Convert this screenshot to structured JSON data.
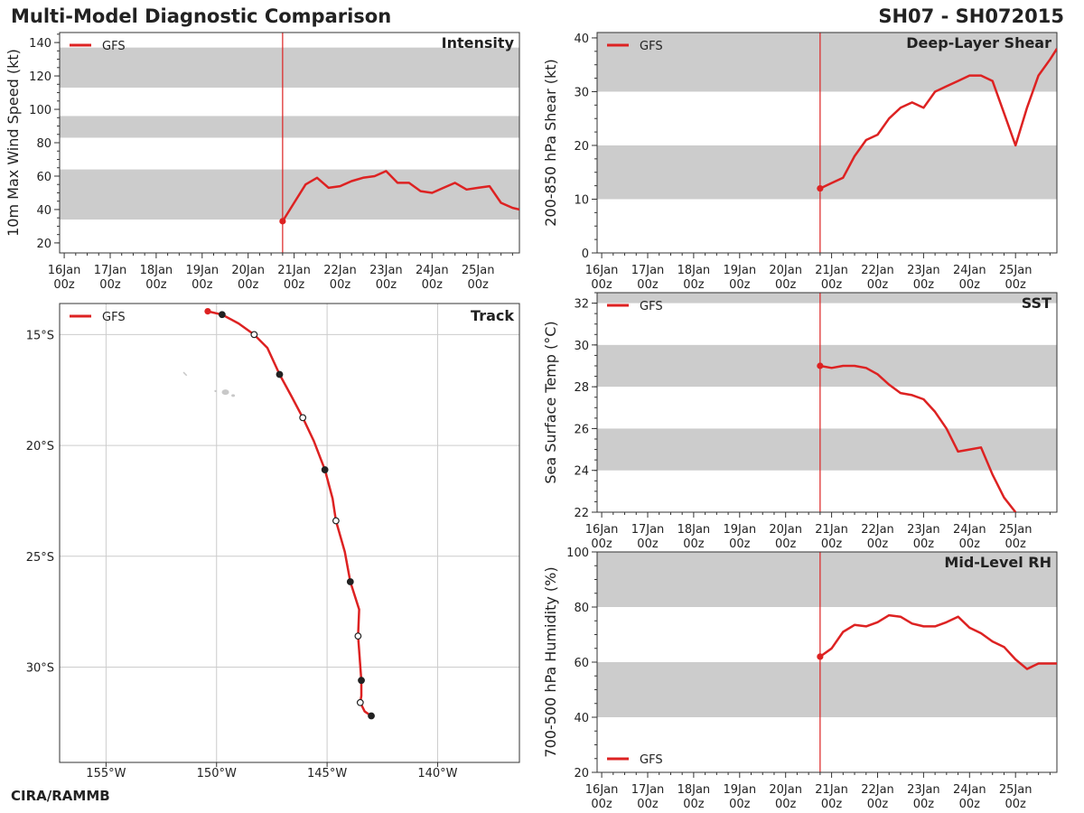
{
  "header": {
    "title": "Multi-Model Diagnostic Comparison",
    "storm_id": "SH07 - SH072015"
  },
  "footer": {
    "credit": "CIRA/RAMMB"
  },
  "colors": {
    "model_line": "#dd2222",
    "band": "#cccccc",
    "grid": "#cccccc",
    "land": "#c8c8c8"
  },
  "time_axis": {
    "ticks": [
      0,
      1,
      2,
      3,
      4,
      5,
      6,
      7,
      8,
      9
    ],
    "labels": [
      [
        "16Jan",
        "00z"
      ],
      [
        "17Jan",
        "00z"
      ],
      [
        "18Jan",
        "00z"
      ],
      [
        "19Jan",
        "00z"
      ],
      [
        "20Jan",
        "00z"
      ],
      [
        "21Jan",
        "00z"
      ],
      [
        "22Jan",
        "00z"
      ],
      [
        "23Jan",
        "00z"
      ],
      [
        "24Jan",
        "00z"
      ],
      [
        "25Jan",
        "00z"
      ]
    ],
    "range": [
      -0.1,
      9.9
    ],
    "current_time": 4.75
  },
  "chart_data": [
    {
      "id": "intensity",
      "type": "line",
      "title": "Intensity",
      "ylabel": "10m Max Wind Speed (kt)",
      "ylim": [
        14,
        146
      ],
      "yticks": [
        20,
        40,
        60,
        80,
        100,
        120,
        140
      ],
      "bands": [
        [
          34,
          64
        ],
        [
          83,
          96
        ],
        [
          113,
          137
        ]
      ],
      "legend": "top-left",
      "series": [
        {
          "name": "GFS",
          "x": [
            4.75,
            5.0,
            5.25,
            5.5,
            5.75,
            6.0,
            6.25,
            6.5,
            6.75,
            7.0,
            7.25,
            7.5,
            7.75,
            8.0,
            8.25,
            8.5,
            8.75,
            9.0,
            9.25,
            9.5,
            9.75,
            9.9
          ],
          "y": [
            33,
            44,
            55,
            59,
            53,
            54,
            57,
            59,
            60,
            63,
            56,
            56,
            51,
            50,
            53,
            56,
            52,
            53,
            54,
            44,
            41,
            40
          ]
        }
      ]
    },
    {
      "id": "shear",
      "type": "line",
      "title": "Deep-Layer Shear",
      "ylabel": "200-850 hPa Shear (kt)",
      "ylim": [
        0,
        41
      ],
      "yticks": [
        0,
        10,
        20,
        30,
        40
      ],
      "bands": [
        [
          10,
          20
        ],
        [
          30,
          41
        ]
      ],
      "legend": "top-left",
      "series": [
        {
          "name": "GFS",
          "x": [
            4.75,
            5.0,
            5.25,
            5.5,
            5.75,
            6.0,
            6.25,
            6.5,
            6.75,
            7.0,
            7.25,
            7.5,
            7.75,
            8.0,
            8.25,
            8.5,
            8.75,
            9.0,
            9.25,
            9.5,
            9.75,
            9.9
          ],
          "y": [
            12,
            13,
            14,
            18,
            21,
            22,
            25,
            27,
            28,
            27,
            30,
            31,
            32,
            33,
            33,
            32,
            26,
            20,
            27,
            33,
            36,
            38
          ]
        }
      ]
    },
    {
      "id": "sst",
      "type": "line",
      "title": "SST",
      "ylabel": "Sea Surface Temp (°C)",
      "ylim": [
        22,
        32.5
      ],
      "yticks": [
        22,
        24,
        26,
        28,
        30,
        32
      ],
      "bands": [
        [
          24,
          26
        ],
        [
          28,
          30
        ],
        [
          32,
          32.5
        ]
      ],
      "legend": "top-left",
      "series": [
        {
          "name": "GFS",
          "x": [
            4.75,
            5.0,
            5.25,
            5.5,
            5.75,
            6.0,
            6.25,
            6.5,
            6.75,
            7.0,
            7.25,
            7.5,
            7.75,
            8.0,
            8.25,
            8.5,
            8.75,
            9.0
          ],
          "y": [
            29.0,
            28.9,
            29.0,
            29.0,
            28.9,
            28.6,
            28.1,
            27.7,
            27.6,
            27.4,
            26.8,
            26.0,
            24.9,
            25.0,
            25.1,
            23.8,
            22.7,
            22.0
          ]
        }
      ]
    },
    {
      "id": "rh",
      "type": "line",
      "title": "Mid-Level RH",
      "ylabel": "700-500 hPa Humidity (%)",
      "ylim": [
        20,
        100
      ],
      "yticks": [
        20,
        40,
        60,
        80,
        100
      ],
      "bands": [
        [
          40,
          60
        ],
        [
          80,
          100
        ]
      ],
      "legend": "bottom-left",
      "series": [
        {
          "name": "GFS",
          "x": [
            4.75,
            5.0,
            5.25,
            5.5,
            5.75,
            6.0,
            6.25,
            6.5,
            6.75,
            7.0,
            7.25,
            7.5,
            7.75,
            8.0,
            8.25,
            8.5,
            8.75,
            9.0,
            9.25,
            9.5,
            9.75,
            9.9
          ],
          "y": [
            62,
            65,
            71,
            73.5,
            73,
            74.5,
            77,
            76.5,
            74,
            73,
            73,
            74.5,
            76.5,
            72.5,
            70.5,
            67.5,
            65.5,
            61,
            57.5,
            59.5,
            59.5,
            59.5
          ]
        }
      ]
    },
    {
      "id": "track",
      "type": "scatter",
      "title": "Track",
      "xlim": [
        -157.1,
        -136.3
      ],
      "ylim": [
        -34.3,
        -13.6
      ],
      "xticks": [
        -155,
        -150,
        -145,
        -140
      ],
      "xticklabels": [
        "155°W",
        "150°W",
        "145°W",
        "140°W"
      ],
      "yticks": [
        -15,
        -20,
        -25,
        -30
      ],
      "yticklabels": [
        "15°S",
        "20°S",
        "25°S",
        "30°S"
      ],
      "legend": "top-left",
      "series": [
        {
          "name": "GFS",
          "lon": [
            -150.4,
            -149.75,
            -149.0,
            -148.3,
            -147.7,
            -147.15,
            -146.6,
            -146.1,
            -145.6,
            -145.1,
            -144.75,
            -144.6,
            -144.2,
            -143.95,
            -143.55,
            -143.6,
            -143.45,
            -143.45,
            -143.5,
            -143.3,
            -143.0
          ],
          "lat": [
            -13.95,
            -14.1,
            -14.5,
            -15.0,
            -15.6,
            -16.8,
            -17.8,
            -18.75,
            -19.8,
            -21.1,
            -22.4,
            -23.4,
            -24.8,
            -26.15,
            -27.4,
            -28.6,
            -30.6,
            -31.3,
            -31.6,
            -32.0,
            -32.2
          ]
        }
      ],
      "markers": [
        {
          "lon": -149.75,
          "lat": -14.1,
          "style": "filled"
        },
        {
          "lon": -148.3,
          "lat": -15.0,
          "style": "open"
        },
        {
          "lon": -147.15,
          "lat": -16.8,
          "style": "filled"
        },
        {
          "lon": -146.1,
          "lat": -18.75,
          "style": "open"
        },
        {
          "lon": -145.1,
          "lat": -21.1,
          "style": "filled"
        },
        {
          "lon": -144.6,
          "lat": -23.4,
          "style": "open"
        },
        {
          "lon": -143.95,
          "lat": -26.15,
          "style": "filled"
        },
        {
          "lon": -143.6,
          "lat": -28.6,
          "style": "open"
        },
        {
          "lon": -143.45,
          "lat": -30.6,
          "style": "filled"
        },
        {
          "lon": -143.5,
          "lat": -31.6,
          "style": "open"
        },
        {
          "lon": -143.0,
          "lat": -32.2,
          "style": "filled"
        }
      ]
    }
  ]
}
